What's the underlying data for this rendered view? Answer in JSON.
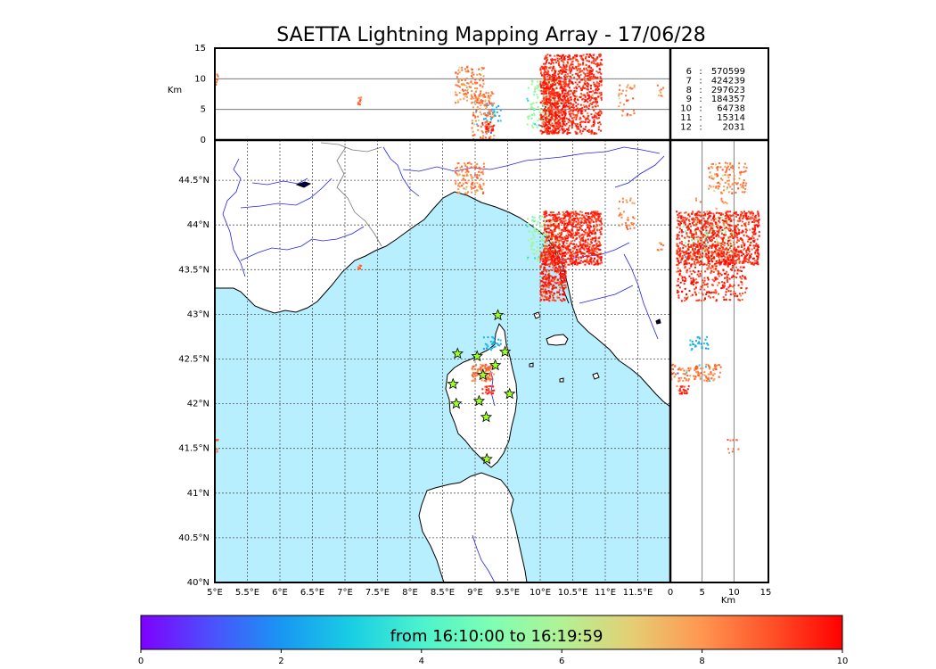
{
  "title": "SAETTA Lightning Mapping Array - 17/06/28",
  "top_panel": {
    "ylabel": "Km",
    "y_ticks": [
      "15",
      "10",
      "5",
      "0"
    ],
    "y_range": [
      0,
      15
    ],
    "hlines": [
      5,
      10
    ]
  },
  "counts_legend": [
    {
      "level": "6",
      "sep": ":",
      "value": "570599",
      "color": "#000000"
    },
    {
      "level": "7",
      "sep": ":",
      "value": "424239",
      "color": "#e00000"
    },
    {
      "level": "8",
      "sep": ":",
      "value": "297623",
      "color": "#000000"
    },
    {
      "level": "9",
      "sep": ":",
      "value": "184357",
      "color": "#000000"
    },
    {
      "level": "10",
      "sep": ":",
      "value": "64738",
      "color": "#000000"
    },
    {
      "level": "11",
      "sep": ":",
      "value": "15314",
      "color": "#000000"
    },
    {
      "level": "12",
      "sep": ":",
      "value": "2031",
      "color": "#000000"
    }
  ],
  "map": {
    "lon_range": [
      5.0,
      12.0
    ],
    "lat_range": [
      40.0,
      44.95
    ],
    "lon_ticks": [
      {
        "v": 5.0,
        "t": "5°E"
      },
      {
        "v": 5.5,
        "t": "5.5°E"
      },
      {
        "v": 6.0,
        "t": "6°E"
      },
      {
        "v": 6.5,
        "t": "6.5°E"
      },
      {
        "v": 7.0,
        "t": "7°E"
      },
      {
        "v": 7.5,
        "t": "7.5°E"
      },
      {
        "v": 8.0,
        "t": "8°E"
      },
      {
        "v": 8.5,
        "t": "8.5°E"
      },
      {
        "v": 9.0,
        "t": "9°E"
      },
      {
        "v": 9.5,
        "t": "9.5°E"
      },
      {
        "v": 10.0,
        "t": "10°E"
      },
      {
        "v": 10.5,
        "t": "10.5°E"
      },
      {
        "v": 11.0,
        "t": "11°E"
      },
      {
        "v": 11.5,
        "t": "11.5°E"
      }
    ],
    "lat_ticks": [
      {
        "v": 40.0,
        "t": "40°N"
      },
      {
        "v": 40.5,
        "t": "40.5°N"
      },
      {
        "v": 41.0,
        "t": "41°N"
      },
      {
        "v": 41.5,
        "t": "41.5°N"
      },
      {
        "v": 42.0,
        "t": "42°N"
      },
      {
        "v": 42.5,
        "t": "42.5°N"
      },
      {
        "v": 43.0,
        "t": "43°N"
      },
      {
        "v": 43.5,
        "t": "43.5°N"
      },
      {
        "v": 44.0,
        "t": "44°N"
      },
      {
        "v": 44.5,
        "t": "44.5°N"
      }
    ],
    "sea_color": "#b8efff",
    "land_color": "#ffffff",
    "stations": [
      {
        "lon": 9.35,
        "lat": 42.99
      },
      {
        "lon": 8.73,
        "lat": 42.56
      },
      {
        "lon": 9.03,
        "lat": 42.53
      },
      {
        "lon": 9.46,
        "lat": 42.58
      },
      {
        "lon": 9.31,
        "lat": 42.43
      },
      {
        "lon": 9.12,
        "lat": 42.32
      },
      {
        "lon": 8.66,
        "lat": 42.22
      },
      {
        "lon": 9.53,
        "lat": 42.11
      },
      {
        "lon": 9.06,
        "lat": 42.03
      },
      {
        "lon": 8.71,
        "lat": 42.0
      },
      {
        "lon": 9.17,
        "lat": 41.85
      },
      {
        "lon": 9.18,
        "lat": 41.38
      }
    ]
  },
  "side_panel": {
    "xlabel": "Km",
    "x_ticks": [
      "0",
      "5",
      "10",
      "15"
    ],
    "x_range": [
      0,
      15
    ],
    "vlines": [
      5,
      10
    ]
  },
  "colorbar": {
    "label": "from 16:10:00 to 16:19:59",
    "ticks": [
      "0",
      "2",
      "4",
      "6",
      "8",
      "10"
    ],
    "range": [
      0,
      10
    ],
    "colors": [
      "#7f00ff",
      "#4c50fc",
      "#1996f3",
      "#19cee3",
      "#4cf2ce",
      "#7ffeb3",
      "#b2f295",
      "#e5ce74",
      "#ff9650",
      "#ff5028",
      "#ff0000"
    ]
  },
  "chart_data": {
    "type": "scatter",
    "title": "SAETTA Lightning Mapping Array - 17/06/28",
    "xlabel": "",
    "ylabel": "",
    "x_range": [
      5.0,
      12.0
    ],
    "y_range": [
      40.0,
      44.95
    ],
    "clusters": [
      {
        "lon": [
          10.05,
          10.95
        ],
        "lat": [
          43.55,
          44.15
        ],
        "alt": [
          1,
          14
        ],
        "time": [
          8,
          10
        ],
        "density": 900
      },
      {
        "lon": [
          10.0,
          10.4
        ],
        "lat": [
          43.15,
          43.7
        ],
        "alt": [
          1,
          12
        ],
        "time": [
          7,
          10
        ],
        "density": 350
      },
      {
        "lon": [
          9.8,
          10.3
        ],
        "lat": [
          43.6,
          44.1
        ],
        "alt": [
          2,
          10
        ],
        "time": [
          2,
          6
        ],
        "density": 160
      },
      {
        "lon": [
          8.7,
          9.15
        ],
        "lat": [
          44.35,
          44.7
        ],
        "alt": [
          6,
          12
        ],
        "time": [
          5,
          9
        ],
        "density": 120
      },
      {
        "lon": [
          8.95,
          9.3
        ],
        "lat": [
          42.25,
          42.45
        ],
        "alt": [
          0,
          8
        ],
        "time": [
          0,
          9
        ],
        "density": 120
      },
      {
        "lon": [
          9.1,
          9.4
        ],
        "lat": [
          42.6,
          42.75
        ],
        "alt": [
          3,
          6
        ],
        "time": [
          2,
          3
        ],
        "density": 30
      },
      {
        "lon": [
          9.1,
          9.3
        ],
        "lat": [
          42.1,
          42.2
        ],
        "alt": [
          1,
          3
        ],
        "time": [
          8,
          10
        ],
        "density": 25
      },
      {
        "lon": [
          11.2,
          11.45
        ],
        "lat": [
          43.95,
          44.3
        ],
        "alt": [
          4,
          9
        ],
        "time": [
          6,
          9
        ],
        "density": 35
      },
      {
        "lon": [
          7.2,
          7.25
        ],
        "lat": [
          43.5,
          43.55
        ],
        "alt": [
          5,
          7
        ],
        "time": [
          8,
          9
        ],
        "density": 10
      },
      {
        "lon": [
          5.0,
          5.05
        ],
        "lat": [
          41.45,
          41.6
        ],
        "alt": [
          9,
          11
        ],
        "time": [
          8,
          9
        ],
        "density": 10
      },
      {
        "lon": [
          11.8,
          11.9
        ],
        "lat": [
          43.7,
          43.8
        ],
        "alt": [
          7,
          9
        ],
        "time": [
          7,
          9
        ],
        "density": 8
      }
    ]
  }
}
